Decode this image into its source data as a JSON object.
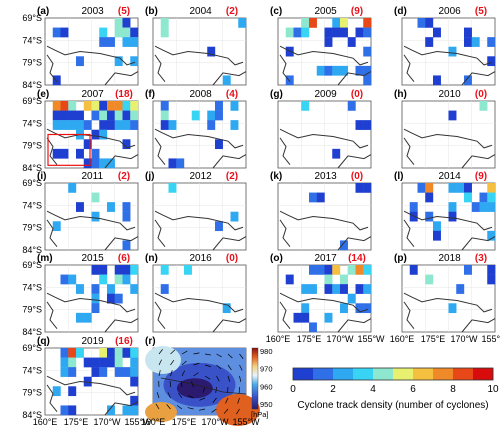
{
  "chart_data": {
    "type": "heatmap",
    "panels": [
      {
        "label": "(a)",
        "year": "2003",
        "count": "(5)"
      },
      {
        "label": "(b)",
        "year": "2004",
        "count": "(2)"
      },
      {
        "label": "(c)",
        "year": "2005",
        "count": "(9)"
      },
      {
        "label": "(d)",
        "year": "2006",
        "count": "(5)"
      },
      {
        "label": "(e)",
        "year": "2007",
        "count": "(18)"
      },
      {
        "label": "(f)",
        "year": "2008",
        "count": "(4)"
      },
      {
        "label": "(g)",
        "year": "2009",
        "count": "(0)"
      },
      {
        "label": "(h)",
        "year": "2010",
        "count": "(0)"
      },
      {
        "label": "(i)",
        "year": "2011",
        "count": "(2)"
      },
      {
        "label": "(j)",
        "year": "2012",
        "count": "(2)"
      },
      {
        "label": "(k)",
        "year": "2013",
        "count": "(0)"
      },
      {
        "label": "(l)",
        "year": "2014",
        "count": "(9)"
      },
      {
        "label": "(m)",
        "year": "2015",
        "count": "(6)"
      },
      {
        "label": "(n)",
        "year": "2016",
        "count": "(0)"
      },
      {
        "label": "(o)",
        "year": "2017",
        "count": "(14)"
      },
      {
        "label": "(p)",
        "year": "2018",
        "count": "(3)"
      },
      {
        "label": "(q)",
        "year": "2019",
        "count": "(16)"
      },
      {
        "label": "(r)",
        "year": "",
        "count": ""
      }
    ],
    "lat_ticks": [
      "69°S",
      "74°S",
      "79°S",
      "84°S"
    ],
    "lon_ticks": [
      "160°E",
      "175°E",
      "170°W",
      "155°W"
    ],
    "colorbar": {
      "label": "Cyclone track density (number of cyclones)",
      "ticks": [
        "0",
        "2",
        "4",
        "6",
        "8",
        "10"
      ],
      "range": [
        0,
        10
      ],
      "colors": [
        "#1f3fd0",
        "#2f6fe8",
        "#2ea8f0",
        "#38d4f4",
        "#8ee8d0",
        "#e8f070",
        "#f5c040",
        "#f08a28",
        "#e84818",
        "#d80c0c"
      ]
    },
    "pressure_colorbar": {
      "unit": "[hPa]",
      "ticks": [
        "980",
        "970",
        "960",
        "950"
      ],
      "range": [
        950,
        980
      ]
    }
  }
}
